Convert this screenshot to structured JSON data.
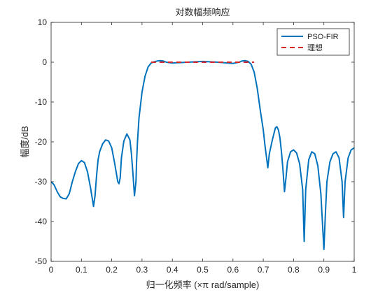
{
  "chart_data": {
    "type": "line",
    "title": "对数幅频响应",
    "xlabel": "归一化频率 (×π rad/sample)",
    "ylabel": "幅度/dB",
    "xlim": [
      0,
      1
    ],
    "ylim": [
      -50,
      10
    ],
    "xticks": [
      0,
      0.1,
      0.2,
      0.3,
      0.4,
      0.5,
      0.6,
      0.7,
      0.8,
      0.9,
      1
    ],
    "xtick_labels": [
      "0",
      "0.1",
      "0.2",
      "0.3",
      "0.4",
      "0.5",
      "0.6",
      "0.7",
      "0.8",
      "0.9",
      "1"
    ],
    "yticks": [
      10,
      0,
      -10,
      -20,
      -30,
      -40,
      -50
    ],
    "ytick_labels": [
      "10",
      "0",
      "-10",
      "-20",
      "-30",
      "-40",
      "-50"
    ],
    "grid": false,
    "legend_position": "top-right",
    "series": [
      {
        "name": "PSO-FIR",
        "color": "#0072BD",
        "style": "solid",
        "x": [
          0,
          0.01,
          0.02,
          0.03,
          0.04,
          0.05,
          0.06,
          0.07,
          0.08,
          0.09,
          0.1,
          0.11,
          0.12,
          0.13,
          0.14,
          0.145,
          0.15,
          0.155,
          0.16,
          0.17,
          0.18,
          0.19,
          0.2,
          0.21,
          0.22,
          0.224,
          0.228,
          0.232,
          0.24,
          0.25,
          0.26,
          0.265,
          0.27,
          0.275,
          0.28,
          0.282,
          0.285,
          0.29,
          0.3,
          0.31,
          0.32,
          0.33,
          0.34,
          0.35,
          0.36,
          0.37,
          0.38,
          0.4,
          0.45,
          0.5,
          0.55,
          0.6,
          0.62,
          0.63,
          0.64,
          0.65,
          0.66,
          0.67,
          0.68,
          0.69,
          0.7,
          0.705,
          0.71,
          0.715,
          0.72,
          0.73,
          0.74,
          0.745,
          0.75,
          0.755,
          0.76,
          0.765,
          0.77,
          0.775,
          0.78,
          0.79,
          0.8,
          0.81,
          0.82,
          0.83,
          0.835,
          0.84,
          0.85,
          0.86,
          0.87,
          0.88,
          0.89,
          0.895,
          0.9,
          0.905,
          0.91,
          0.92,
          0.93,
          0.94,
          0.95,
          0.96,
          0.965,
          0.97,
          0.98,
          0.99,
          1
        ],
        "y": [
          -30,
          -30.8,
          -32.5,
          -33.8,
          -34.2,
          -34.3,
          -33,
          -30,
          -27.5,
          -25.5,
          -24.7,
          -25.2,
          -27.5,
          -31.5,
          -36.2,
          -33.5,
          -28.5,
          -24.5,
          -22.5,
          -20.5,
          -19.5,
          -19.8,
          -21.5,
          -25.5,
          -30,
          -30.5,
          -29,
          -24,
          -19.8,
          -18,
          -19.5,
          -23,
          -28,
          -33.5,
          -30,
          -25,
          -20,
          -14,
          -7.5,
          -3.5,
          -1.2,
          -0.2,
          0.1,
          0.3,
          0.4,
          0.3,
          0,
          -0.2,
          0,
          0.2,
          0,
          -0.3,
          0,
          0.3,
          0.4,
          0.2,
          -0.5,
          -2.5,
          -6.5,
          -12,
          -17,
          -20.5,
          -23.5,
          -26.5,
          -23,
          -19.5,
          -16.5,
          -16.2,
          -17,
          -19,
          -22.5,
          -27,
          -32.5,
          -29,
          -25,
          -22.5,
          -22,
          -22.8,
          -25.5,
          -32,
          -45,
          -32,
          -24.5,
          -22.5,
          -23,
          -26,
          -33,
          -40,
          -47,
          -38,
          -30,
          -25,
          -23,
          -22.5,
          -24,
          -30,
          -39,
          -30,
          -24,
          -22,
          -21.5
        ]
      },
      {
        "name": "理想",
        "color": "#D62728",
        "style": "dashed",
        "x": [
          0.33,
          0.67
        ],
        "y": [
          0,
          0
        ]
      }
    ]
  }
}
